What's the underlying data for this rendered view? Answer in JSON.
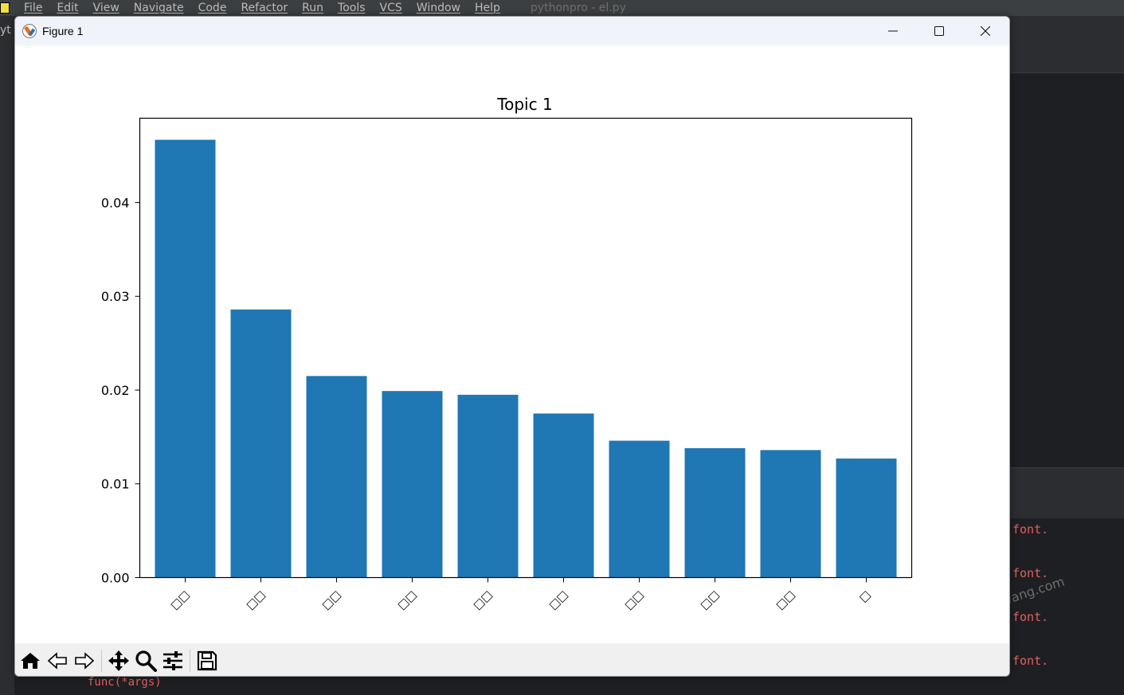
{
  "ide": {
    "menu": [
      "File",
      "Edit",
      "View",
      "Navigate",
      "Code",
      "Refactor",
      "Run",
      "Tools",
      "VCS",
      "Window",
      "Help"
    ],
    "title": "pythonpro - el.py",
    "left_fragment": "yt",
    "console_lines": [
      "font.",
      "font.",
      "font.",
      "font."
    ],
    "bottom_text": "func(*args)",
    "watermark": "https://yuansiwang.com"
  },
  "window": {
    "title": "Figure 1"
  },
  "toolbar": {
    "buttons": [
      "home-icon",
      "back-icon",
      "forward-icon",
      "pan-icon",
      "zoom-icon",
      "configure-icon",
      "save-icon"
    ]
  },
  "chart_data": {
    "type": "bar",
    "title": "Topic 1",
    "xlabel": "",
    "ylabel": "",
    "categories": [
      "□□",
      "□□",
      "□□",
      "□□",
      "□□",
      "□□",
      "□□",
      "□□",
      "□□",
      "□"
    ],
    "values": [
      0.0467,
      0.0286,
      0.0215,
      0.0199,
      0.0195,
      0.0175,
      0.0146,
      0.0138,
      0.0136,
      0.0127
    ],
    "ylim": [
      0,
      0.049
    ],
    "yticks": [
      0.0,
      0.01,
      0.02,
      0.03,
      0.04
    ],
    "ytick_labels": [
      "0.00",
      "0.01",
      "0.02",
      "0.03",
      "0.04"
    ],
    "bar_color": "#1f77b4",
    "grid": false
  }
}
